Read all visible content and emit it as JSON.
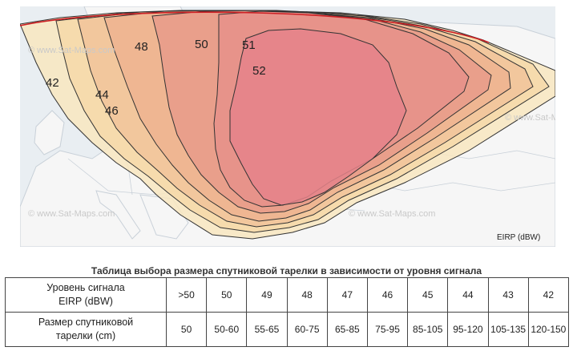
{
  "map": {
    "contour_labels": [
      "42",
      "44",
      "46",
      "48",
      "50",
      "51",
      "52"
    ],
    "unit_label": "EIRP (dBW)",
    "watermark": "© www.Sat-Maps.com",
    "colors": {
      "sea": "#e9eef2",
      "land": "#f6f6f6",
      "border": "#c8d0d8",
      "arc": "#cc1f24",
      "contour": "#333333",
      "bands": [
        "#f8e6bf",
        "#f6d8a8",
        "#f1c39a",
        "#eeb390",
        "#e89b8a",
        "#e6908a",
        "#e5838a"
      ]
    }
  },
  "table": {
    "caption": "Таблица выбора размера спутниковой тарелки в зависимости от уровня сигнала",
    "rows": [
      {
        "header_line1": "Уровень сигнала",
        "header_line2": "EIRP (dBW)",
        "cells": [
          ">50",
          "50",
          "49",
          "48",
          "47",
          "46",
          "45",
          "44",
          "43",
          "42"
        ]
      },
      {
        "header_line1": "Размер спутниковой",
        "header_line2": "тарелки (cm)",
        "cells": [
          "50",
          "50-60",
          "55-65",
          "60-75",
          "65-85",
          "75-95",
          "85-105",
          "95-120",
          "105-135",
          "120-150"
        ]
      }
    ]
  }
}
